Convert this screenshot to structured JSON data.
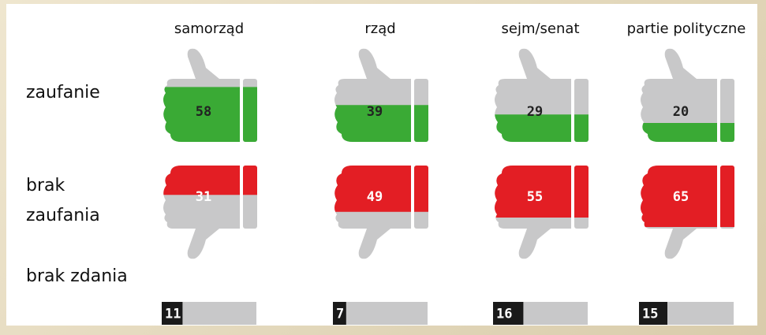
{
  "chart_data": {
    "type": "pictogram",
    "categories": [
      "samorząd",
      "rząd",
      "sejm/senat",
      "partie polityczne"
    ],
    "series": [
      {
        "name": "zaufanie",
        "color": "#3aaa35",
        "values": [
          58,
          39,
          29,
          20
        ]
      },
      {
        "name": "brak zaufania",
        "color": "#e31e24",
        "values": [
          31,
          49,
          55,
          65
        ]
      },
      {
        "name": "brak zdania",
        "color": "#1a1a1a",
        "values": [
          11,
          7,
          16,
          15
        ]
      }
    ],
    "base_color": "#c8c8c9"
  }
}
